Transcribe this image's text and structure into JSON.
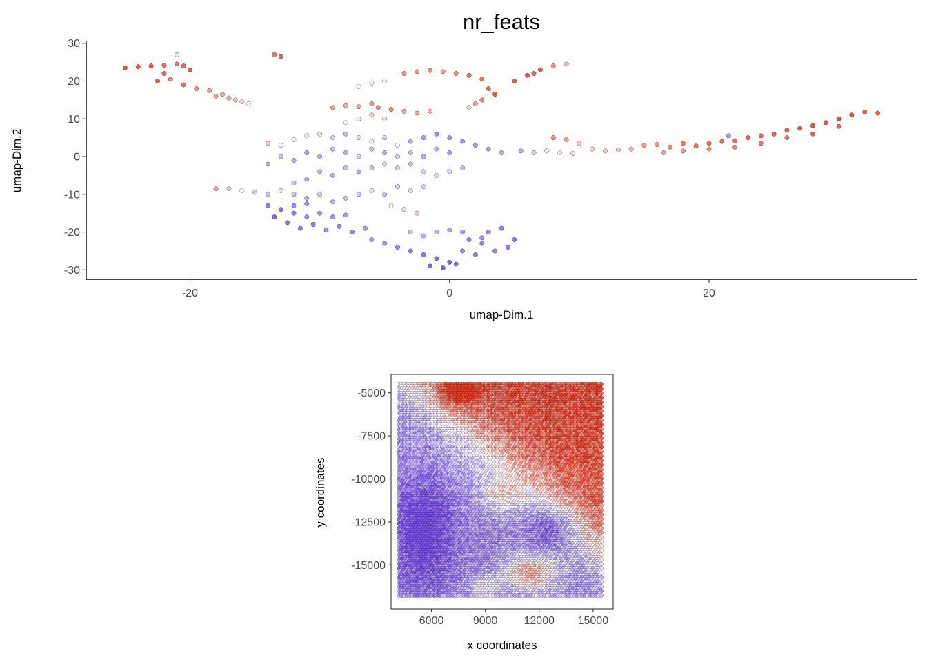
{
  "title": "nr_feats",
  "color_scale": {
    "low": "#7b52ee",
    "mid": "#ffffff",
    "high": "#e8402a"
  },
  "chart_data": [
    {
      "type": "scatter",
      "name": "umap",
      "xlabel": "umap-Dim.1",
      "ylabel": "umap-Dim.2",
      "xlim": [
        -28,
        36
      ],
      "ylim": [
        -32.5,
        30.5
      ],
      "x_ticks": [
        -20,
        0,
        20
      ],
      "x_tick_labels": [
        "-20",
        "0",
        "20"
      ],
      "y_ticks": [
        30,
        20,
        10,
        0,
        -10,
        -20,
        -30
      ],
      "y_tick_labels": [
        "30",
        "20",
        "10",
        "0",
        "-10",
        "-20",
        "-30"
      ],
      "grid": false,
      "points": [
        [
          -25,
          23.5,
          0.9
        ],
        [
          -24,
          23.8,
          0.85
        ],
        [
          -23,
          24,
          0.9
        ],
        [
          -22,
          24.2,
          0.8
        ],
        [
          -21,
          24.5,
          0.75
        ],
        [
          -20.5,
          24,
          0.8
        ],
        [
          -20,
          23,
          0.85
        ],
        [
          -22,
          22,
          0.8
        ],
        [
          -22.5,
          20,
          0.85
        ],
        [
          -21.5,
          20.5,
          0.7
        ],
        [
          -20.5,
          19,
          0.75
        ],
        [
          -19.5,
          18,
          0.6
        ],
        [
          -18.5,
          17.5,
          0.55
        ],
        [
          -18,
          16,
          0.5
        ],
        [
          -17,
          15.5,
          0.45
        ],
        [
          -16.5,
          15,
          0.3
        ],
        [
          -16,
          14.5,
          0.2
        ],
        [
          -15.5,
          14,
          -0.1
        ],
        [
          -17.5,
          16.5,
          0.5
        ],
        [
          -21,
          27,
          -0.2
        ],
        [
          -13.5,
          27,
          0.7
        ],
        [
          -13,
          26.5,
          0.8
        ],
        [
          -3.5,
          22,
          0.6
        ],
        [
          -2.5,
          22.5,
          0.55
        ],
        [
          -1.5,
          22.8,
          0.6
        ],
        [
          -0.5,
          22.5,
          0.5
        ],
        [
          0.5,
          22,
          0.6
        ],
        [
          1.5,
          21.5,
          0.7
        ],
        [
          2.5,
          20.5,
          0.75
        ],
        [
          -5,
          20,
          0.1
        ],
        [
          -6,
          19.5,
          -0.1
        ],
        [
          -7,
          18.5,
          0.0
        ],
        [
          3,
          18,
          0.8
        ],
        [
          3.5,
          16.5,
          0.85
        ],
        [
          2.5,
          15,
          0.6
        ],
        [
          2,
          14,
          0.5
        ],
        [
          1.5,
          13,
          0.2
        ],
        [
          5,
          20,
          0.85
        ],
        [
          6,
          21.5,
          0.9
        ],
        [
          7,
          23,
          0.85
        ],
        [
          8,
          24,
          0.6
        ],
        [
          9,
          24.5,
          0.4
        ],
        [
          6.5,
          22,
          0.8
        ],
        [
          -9,
          13,
          0.5
        ],
        [
          -8,
          13.5,
          0.45
        ],
        [
          -7,
          13.2,
          0.5
        ],
        [
          -6,
          14,
          0.55
        ],
        [
          -5.5,
          13,
          0.6
        ],
        [
          -4.5,
          12.5,
          0.6
        ],
        [
          -3.5,
          12,
          0.5
        ],
        [
          -2.5,
          11.5,
          0.45
        ],
        [
          -1.5,
          12,
          0.4
        ],
        [
          -6,
          11,
          0.3
        ],
        [
          -7,
          10,
          0.2
        ],
        [
          -8,
          9,
          0.1
        ],
        [
          -5,
          10,
          0.2
        ],
        [
          -14,
          3.5,
          0.3
        ],
        [
          -13,
          3,
          0.1
        ],
        [
          -12,
          4.5,
          0.0
        ],
        [
          -11,
          5.5,
          -0.1
        ],
        [
          -10,
          6,
          0.2
        ],
        [
          -9,
          5,
          -0.3
        ],
        [
          -8,
          6,
          -0.4
        ],
        [
          -7,
          5,
          -0.2
        ],
        [
          -6,
          4,
          0.1
        ],
        [
          -5,
          5,
          -0.3
        ],
        [
          -4,
          3,
          0.0
        ],
        [
          -3,
          4,
          -0.5
        ],
        [
          -2,
          5,
          -0.6
        ],
        [
          -1,
          6,
          -0.7
        ],
        [
          0,
          5,
          -0.7
        ],
        [
          1,
          4,
          -0.65
        ],
        [
          2,
          3,
          -0.6
        ],
        [
          3,
          2,
          -0.55
        ],
        [
          4,
          1,
          -0.5
        ],
        [
          -1,
          2,
          -0.5
        ],
        [
          0,
          1,
          -0.6
        ],
        [
          -2,
          0,
          -0.5
        ],
        [
          -3,
          1,
          -0.4
        ],
        [
          -4,
          0,
          -0.3
        ],
        [
          -5,
          1,
          -0.5
        ],
        [
          -6,
          2,
          -0.4
        ],
        [
          -7,
          0,
          -0.3
        ],
        [
          -8,
          1,
          -0.5
        ],
        [
          -9,
          2,
          -0.4
        ],
        [
          -10,
          0,
          -0.5
        ],
        [
          -11,
          1,
          -0.6
        ],
        [
          -12,
          -1,
          -0.5
        ],
        [
          -13,
          0,
          -0.4
        ],
        [
          -14,
          -2,
          -0.5
        ],
        [
          -3,
          -2,
          -0.4
        ],
        [
          -4,
          -3,
          -0.3
        ],
        [
          -5,
          -2,
          -0.2
        ],
        [
          -6,
          -3,
          -0.4
        ],
        [
          -7,
          -4,
          -0.5
        ],
        [
          -8,
          -3,
          -0.4
        ],
        [
          -9,
          -5,
          -0.5
        ],
        [
          -10,
          -4,
          -0.45
        ],
        [
          -11,
          -6,
          -0.5
        ],
        [
          -12,
          -7,
          -0.4
        ],
        [
          -2,
          -4,
          -0.3
        ],
        [
          -1,
          -5,
          -0.2
        ],
        [
          0,
          -4,
          -0.3
        ],
        [
          1,
          -3,
          -0.4
        ],
        [
          -18,
          -8.5,
          0.5
        ],
        [
          -17,
          -8.5,
          0.3
        ],
        [
          -16,
          -9,
          0.0
        ],
        [
          -15,
          -9.5,
          -0.3
        ],
        [
          -14,
          -10,
          -0.4
        ],
        [
          -13,
          -9,
          -0.2
        ],
        [
          -12,
          -10,
          -0.4
        ],
        [
          -11,
          -11,
          -0.5
        ],
        [
          -10,
          -10,
          -0.3
        ],
        [
          -9,
          -12,
          -0.5
        ],
        [
          -8,
          -11,
          -0.4
        ],
        [
          -7,
          -10,
          -0.3
        ],
        [
          -6,
          -9,
          -0.2
        ],
        [
          -5,
          -10,
          -0.4
        ],
        [
          -4,
          -8,
          -0.3
        ],
        [
          -3,
          -9,
          -0.2
        ],
        [
          -2,
          -8,
          -0.3
        ],
        [
          -14,
          -13,
          -0.8
        ],
        [
          -13,
          -14,
          -0.85
        ],
        [
          -12,
          -15,
          -0.8
        ],
        [
          -13.5,
          -16,
          -0.9
        ],
        [
          -12.5,
          -17.5,
          -0.85
        ],
        [
          -11.5,
          -19,
          -0.8
        ],
        [
          -10.5,
          -18,
          -0.75
        ],
        [
          -9.5,
          -19.5,
          -0.7
        ],
        [
          -8.5,
          -18.5,
          -0.75
        ],
        [
          -7.5,
          -20,
          -0.7
        ],
        [
          -6.5,
          -19,
          -0.65
        ],
        [
          -11,
          -16,
          -0.7
        ],
        [
          -10,
          -15,
          -0.6
        ],
        [
          -9,
          -16,
          -0.65
        ],
        [
          -8,
          -15.5,
          -0.6
        ],
        [
          -12,
          -13,
          -0.7
        ],
        [
          -11,
          -12.5,
          -0.65
        ],
        [
          -6,
          -22,
          -0.6
        ],
        [
          -5,
          -23,
          -0.65
        ],
        [
          -4,
          -24,
          -0.7
        ],
        [
          -3,
          -25,
          -0.75
        ],
        [
          -2,
          -26,
          -0.8
        ],
        [
          -1,
          -27,
          -0.85
        ],
        [
          0,
          -28,
          -0.9
        ],
        [
          -1.5,
          -29,
          -0.9
        ],
        [
          -0.5,
          -29.5,
          -0.95
        ],
        [
          0.5,
          -28.5,
          -0.85
        ],
        [
          -3,
          -20,
          -0.4
        ],
        [
          -2,
          -21,
          -0.5
        ],
        [
          -1,
          -20,
          -0.45
        ],
        [
          0,
          -19.5,
          -0.55
        ],
        [
          1,
          -20,
          -0.6
        ],
        [
          1.5,
          -22,
          -0.7
        ],
        [
          2.5,
          -23,
          -0.75
        ],
        [
          3,
          -20,
          -0.7
        ],
        [
          4,
          -19,
          -0.75
        ],
        [
          5,
          -22,
          -0.8
        ],
        [
          4.5,
          -24,
          -0.8
        ],
        [
          3.5,
          -25,
          -0.75
        ],
        [
          2,
          -26,
          -0.8
        ],
        [
          1,
          -25,
          -0.7
        ],
        [
          2.5,
          -21.5,
          -0.65
        ],
        [
          -3.5,
          -14,
          0.2
        ],
        [
          -4.5,
          -13,
          0.1
        ],
        [
          -2.5,
          -15,
          0.3
        ],
        [
          5.5,
          1.5,
          -0.5
        ],
        [
          6.5,
          1,
          -0.3
        ],
        [
          7.5,
          1.5,
          -0.1
        ],
        [
          8.5,
          1,
          0.1
        ],
        [
          9.5,
          0.8,
          0.2
        ],
        [
          8,
          5,
          0.6
        ],
        [
          9,
          4.5,
          0.5
        ],
        [
          10,
          3.5,
          0.3
        ],
        [
          11,
          2,
          0.2
        ],
        [
          12,
          1.5,
          0.3
        ],
        [
          13,
          1.8,
          0.3
        ],
        [
          14,
          2,
          0.4
        ],
        [
          15,
          3,
          0.55
        ],
        [
          16,
          3.2,
          0.6
        ],
        [
          17,
          2.5,
          0.65
        ],
        [
          18,
          3.5,
          0.7
        ],
        [
          19,
          2.8,
          0.75
        ],
        [
          20,
          3.5,
          0.75
        ],
        [
          21,
          4,
          0.8
        ],
        [
          22,
          4.2,
          0.8
        ],
        [
          23,
          5,
          0.85
        ],
        [
          24,
          5.5,
          0.8
        ],
        [
          25,
          6,
          0.85
        ],
        [
          26,
          7,
          0.85
        ],
        [
          27,
          7.5,
          0.9
        ],
        [
          28,
          8.2,
          0.9
        ],
        [
          29,
          9,
          0.9
        ],
        [
          30,
          10,
          0.95
        ],
        [
          31,
          11,
          0.9
        ],
        [
          32,
          11.8,
          0.85
        ],
        [
          33,
          11.5,
          0.8
        ],
        [
          16.5,
          1,
          0.5
        ],
        [
          18,
          1.5,
          0.55
        ],
        [
          20,
          2,
          0.6
        ],
        [
          22,
          2.5,
          0.65
        ],
        [
          24,
          3.5,
          0.7
        ],
        [
          26,
          5,
          0.75
        ],
        [
          28,
          6,
          0.8
        ],
        [
          30,
          8,
          0.85
        ],
        [
          21.5,
          5.5,
          -0.6
        ]
      ]
    },
    {
      "type": "scatter",
      "name": "spatial",
      "xlabel": "x coordinates",
      "ylabel": "y coordinates",
      "xlim": [
        3750,
        16120
      ],
      "ylim": [
        -17550,
        -3930
      ],
      "x_ticks": [
        6000,
        9000,
        12000,
        15000
      ],
      "x_tick_labels": [
        "6000",
        "9000",
        "12000",
        "15000"
      ],
      "y_ticks": [
        -5000,
        -7500,
        -10000,
        -12500,
        -15000
      ],
      "y_tick_labels": [
        "-5000",
        "-7500",
        "-10000",
        "-12500",
        "-15000"
      ],
      "grid": false,
      "region": {
        "x": [
          4200,
          15500
        ],
        "y": [
          -16800,
          -4500
        ]
      }
    }
  ]
}
